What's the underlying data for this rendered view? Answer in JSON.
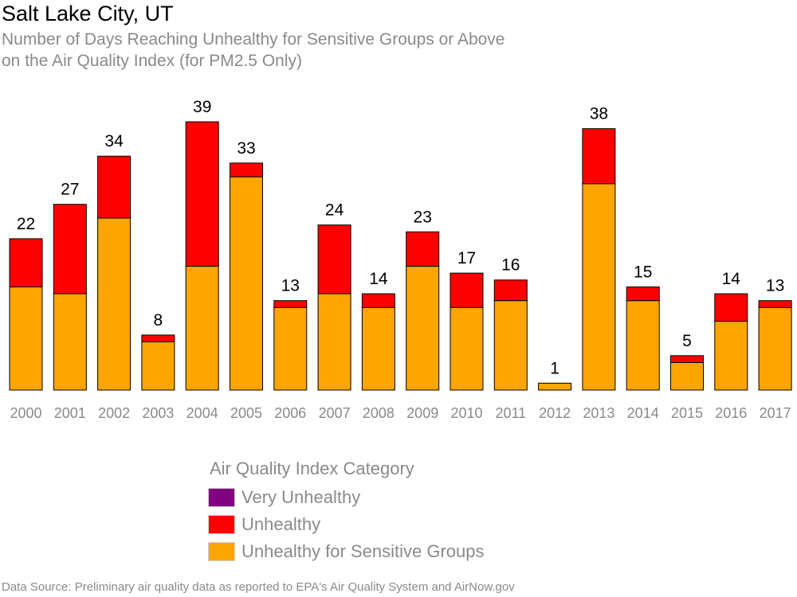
{
  "chart_data": {
    "type": "bar",
    "stacked": true,
    "title": "Salt Lake City, UT",
    "subtitle": [
      "Number of Days Reaching Unhealthy for Sensitive Groups or Above",
      "on the Air Quality Index (for PM2.5 Only)"
    ],
    "categories": [
      "2000",
      "2001",
      "2002",
      "2003",
      "2004",
      "2005",
      "2006",
      "2007",
      "2008",
      "2009",
      "2010",
      "2011",
      "2012",
      "2013",
      "2014",
      "2015",
      "2016",
      "2017"
    ],
    "series": [
      {
        "name": "Unhealthy for Sensitive Groups",
        "color": "#FFA500",
        "values": [
          15,
          14,
          25,
          7,
          18,
          31,
          12,
          14,
          12,
          18,
          12,
          13,
          1,
          30,
          13,
          4,
          10,
          12
        ]
      },
      {
        "name": "Unhealthy",
        "color": "#FF0000",
        "values": [
          7,
          13,
          9,
          1,
          21,
          2,
          1,
          10,
          2,
          5,
          5,
          3,
          0,
          8,
          2,
          1,
          4,
          1
        ]
      },
      {
        "name": "Very Unhealthy",
        "color": "#800080",
        "values": [
          0,
          0,
          0,
          0,
          0,
          0,
          0,
          0,
          0,
          0,
          0,
          0,
          0,
          0,
          0,
          0,
          0,
          0
        ]
      }
    ],
    "totals": [
      "22",
      "27",
      "34",
      "8",
      "39",
      "33",
      "13",
      "24",
      "14",
      "23",
      "17",
      "16",
      "1",
      "38",
      "15",
      "5",
      "14",
      "13"
    ],
    "ylim": [
      0,
      39
    ],
    "xlabel": "",
    "ylabel": "",
    "grid": false,
    "legend": {
      "title": "Air Quality Index Category",
      "position": "bottom",
      "entries": [
        {
          "label": "Very Unhealthy",
          "color": "#800080"
        },
        {
          "label": "Unhealthy",
          "color": "#FF0000"
        },
        {
          "label": "Unhealthy for Sensitive Groups",
          "color": "#FFA500"
        }
      ]
    },
    "source": "Data Source: Preliminary air quality data as reported to EPA's Air Quality System and AirNow.gov"
  }
}
